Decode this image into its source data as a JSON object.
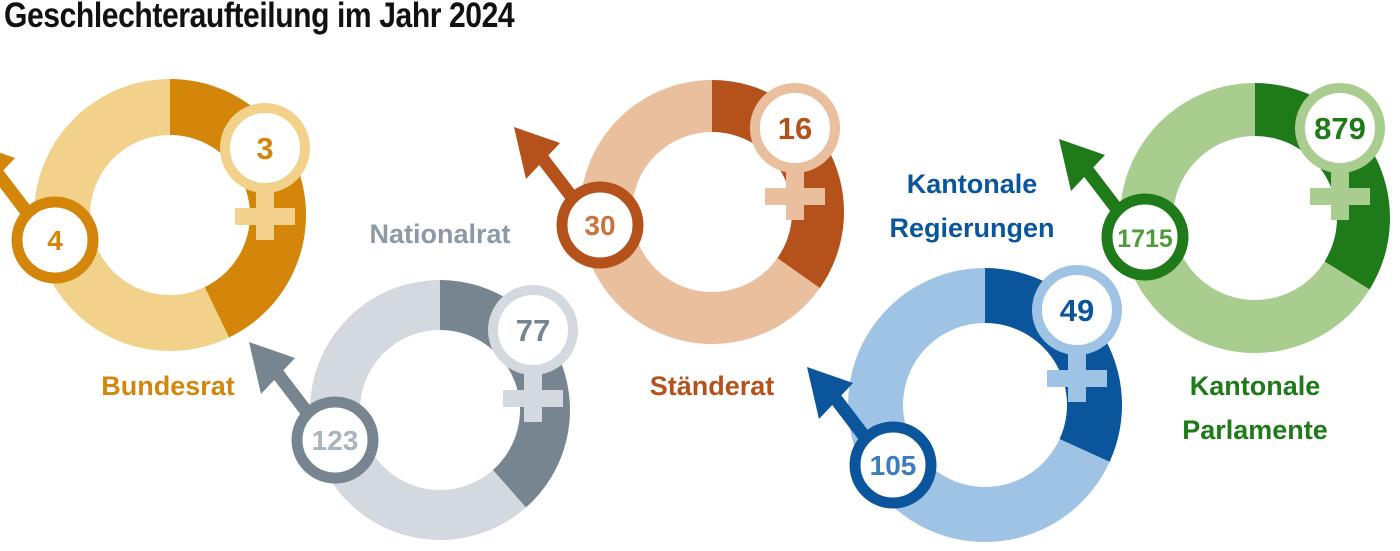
{
  "chart_data": {
    "type": "pie",
    "title": "Geschlechteraufteilung im Jahr 2024",
    "legend": {
      "male": "male-symbol",
      "female": "female-symbol"
    },
    "charts": [
      {
        "label": [
          "Bundesrat"
        ],
        "male": 4,
        "female": 3,
        "dark": "#d4860b",
        "light": "#f2d28b",
        "label_color": "#d4860b"
      },
      {
        "label": [
          "Nationalrat"
        ],
        "male": 123,
        "female": 77,
        "dark": "#778590",
        "light": "#d3d9df",
        "label_color": "#8d99a5"
      },
      {
        "label": [
          "Ständerat"
        ],
        "male": 30,
        "female": 16,
        "dark": "#b5521b",
        "light": "#eabf9e",
        "label_color": "#b5521b"
      },
      {
        "label": [
          "Kantonale",
          "Regierungen"
        ],
        "male": 105,
        "female": 49,
        "dark": "#0b559c",
        "light": "#9fc3e4",
        "label_color": "#0b559c"
      },
      {
        "label": [
          "Kantonale",
          "Parlamente"
        ],
        "male": 1715,
        "female": 879,
        "dark": "#1f7a1a",
        "light": "#a9cc8f",
        "label_color": "#1f7a1a"
      }
    ]
  }
}
